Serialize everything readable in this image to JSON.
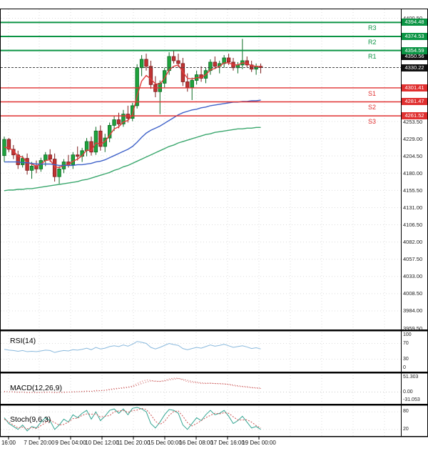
{
  "colors": {
    "up": "#1fa33c",
    "up_border": "#0c6b24",
    "down": "#c03333",
    "down_border": "#7c1d1d",
    "resistance": "#0b9444",
    "support": "#e03030",
    "current_badge": "#111111",
    "ma_fast": "#e23b3b",
    "ma_mid": "#3f62c9",
    "ma_slow": "#3aa76d",
    "rsi": "#8ab9dd",
    "macd": "#d65555",
    "signal": "#b84040",
    "stoch_k": "#35a693",
    "stoch_d": "#cc5555",
    "grid": "#dcdcdc"
  },
  "chart_data": {
    "type": "candlestick",
    "grid": "dotted",
    "time_labels": [
      "16:00",
      "7 Dec 20:00",
      "9 Dec 04:00",
      "10 Dec 12:00",
      "11 Dec 20:00",
      "15 Dec 00:00",
      "16 Dec 08:00",
      "17 Dec 16:00",
      "19 Dec 00:00"
    ],
    "price_axis_ticks": [
      {
        "label": "4400.50",
        "value": 4400.5
      },
      {
        "label": "4253.50",
        "value": 4253.5
      },
      {
        "label": "4229.00",
        "value": 4229.0
      },
      {
        "label": "4204.50",
        "value": 4204.5
      },
      {
        "label": "4180.00",
        "value": 4180.0
      },
      {
        "label": "4155.50",
        "value": 4155.5
      },
      {
        "label": "4131.00",
        "value": 4131.0
      },
      {
        "label": "4106.50",
        "value": 4106.5
      },
      {
        "label": "4082.00",
        "value": 4082.0
      },
      {
        "label": "4057.50",
        "value": 4057.5
      },
      {
        "label": "4033.00",
        "value": 4033.0
      },
      {
        "label": "4008.50",
        "value": 4008.5
      },
      {
        "label": "3984.00",
        "value": 3984.0
      },
      {
        "label": "3959.50",
        "value": 3959.5
      }
    ],
    "levels": {
      "resistance": [
        {
          "name": "R3",
          "label": "4394.48",
          "price": 4394.48
        },
        {
          "name": "R2",
          "label": "4374.53",
          "price": 4374.53
        },
        {
          "name": "R1",
          "label": "4354.59",
          "price": 4354.59
        }
      ],
      "support": [
        {
          "name": "S1",
          "label": "4301.41",
          "price": 4301.41
        },
        {
          "name": "S2",
          "label": "4281.47",
          "price": 4281.47
        },
        {
          "name": "S3",
          "label": "4261.52",
          "price": 4261.52
        }
      ]
    },
    "current_price": {
      "label": "4330.22",
      "value": 4330.22
    },
    "secondary_price": {
      "label": "4350.56",
      "value": 4350.56
    },
    "candles": [
      [
        4205,
        4232,
        4196,
        4228
      ],
      [
        4228,
        4230,
        4210,
        4214
      ],
      [
        4214,
        4220,
        4200,
        4206
      ],
      [
        4206,
        4212,
        4186,
        4192
      ],
      [
        4192,
        4205,
        4188,
        4201
      ],
      [
        4201,
        4208,
        4178,
        4184
      ],
      [
        4184,
        4196,
        4172,
        4190
      ],
      [
        4190,
        4198,
        4180,
        4186
      ],
      [
        4186,
        4202,
        4182,
        4198
      ],
      [
        4198,
        4210,
        4190,
        4206
      ],
      [
        4206,
        4214,
        4196,
        4200
      ],
      [
        4200,
        4208,
        4168,
        4175
      ],
      [
        4175,
        4190,
        4165,
        4186
      ],
      [
        4186,
        4200,
        4180,
        4196
      ],
      [
        4196,
        4206,
        4188,
        4192
      ],
      [
        4192,
        4210,
        4186,
        4206
      ],
      [
        4206,
        4218,
        4198,
        4204
      ],
      [
        4204,
        4216,
        4196,
        4212
      ],
      [
        4212,
        4230,
        4204,
        4225
      ],
      [
        4225,
        4232,
        4205,
        4210
      ],
      [
        4210,
        4246,
        4206,
        4240
      ],
      [
        4240,
        4248,
        4212,
        4218
      ],
      [
        4218,
        4236,
        4210,
        4230
      ],
      [
        4230,
        4252,
        4224,
        4248
      ],
      [
        4248,
        4262,
        4240,
        4256
      ],
      [
        4256,
        4266,
        4244,
        4250
      ],
      [
        4250,
        4270,
        4246,
        4264
      ],
      [
        4264,
        4276,
        4252,
        4258
      ],
      [
        4258,
        4280,
        4254,
        4276
      ],
      [
        4276,
        4335,
        4272,
        4330
      ],
      [
        4330,
        4348,
        4318,
        4342
      ],
      [
        4342,
        4350,
        4326,
        4332
      ],
      [
        4332,
        4340,
        4300,
        4306
      ],
      [
        4306,
        4318,
        4288,
        4296
      ],
      [
        4296,
        4312,
        4264,
        4308
      ],
      [
        4308,
        4330,
        4302,
        4326
      ],
      [
        4326,
        4352,
        4320,
        4346
      ],
      [
        4346,
        4354,
        4336,
        4340
      ],
      [
        4340,
        4350,
        4330,
        4336
      ],
      [
        4336,
        4344,
        4304,
        4310
      ],
      [
        4310,
        4322,
        4296,
        4302
      ],
      [
        4302,
        4316,
        4284,
        4312
      ],
      [
        4312,
        4326,
        4306,
        4320
      ],
      [
        4320,
        4332,
        4310,
        4315
      ],
      [
        4315,
        4330,
        4308,
        4326
      ],
      [
        4326,
        4342,
        4320,
        4338
      ],
      [
        4338,
        4346,
        4328,
        4332
      ],
      [
        4332,
        4340,
        4322,
        4336
      ],
      [
        4336,
        4348,
        4330,
        4344
      ],
      [
        4344,
        4350,
        4334,
        4338
      ],
      [
        4338,
        4344,
        4326,
        4330
      ],
      [
        4330,
        4338,
        4322,
        4334
      ],
      [
        4334,
        4371,
        4328,
        4340
      ],
      [
        4340,
        4346,
        4330,
        4334
      ],
      [
        4334,
        4340,
        4324,
        4328
      ],
      [
        4328,
        4336,
        4320,
        4332
      ],
      [
        4332,
        4336,
        4322,
        4330.22
      ]
    ],
    "moving_averages": [
      {
        "name": "ma-fast-red",
        "color": "#e23b3b",
        "values": [
          4217,
          4216,
          4212,
          4204,
          4203,
          4195,
          4193,
          4190,
          4193,
          4198,
          4199,
          4189,
          4188,
          4191,
          4192,
          4197,
          4200,
          4205,
          4213,
          4212,
          4223,
          4221,
          4225,
          4234,
          4243,
          4246,
          4253,
          4255,
          4263,
          4290,
          4311,
          4319,
          4314,
          4307,
          4307,
          4315,
          4327,
          4332,
          4334,
          4324,
          4315,
          4314,
          4316,
          4316,
          4320,
          4327,
          4329,
          4332,
          4337,
          4337,
          4334,
          4334,
          4337,
          4336,
          4333,
          4332,
          4332
        ]
      },
      {
        "name": "ma-mid-blue",
        "color": "#3f62c9",
        "values": [
          4196,
          4196,
          4196,
          4196,
          4195,
          4195,
          4194,
          4193,
          4193,
          4193,
          4193,
          4192,
          4191,
          4191,
          4191,
          4191,
          4192,
          4192,
          4193,
          4194,
          4196,
          4197,
          4199,
          4202,
          4205,
          4208,
          4211,
          4214,
          4218,
          4224,
          4231,
          4237,
          4241,
          4244,
          4247,
          4251,
          4255,
          4259,
          4263,
          4266,
          4268,
          4270,
          4271,
          4273,
          4274,
          4276,
          4277,
          4278,
          4279,
          4280,
          4281,
          4281,
          4282,
          4282,
          4283,
          4283,
          4284
        ]
      },
      {
        "name": "ma-slow-green",
        "color": "#3aa76d",
        "values": [
          4155,
          4156,
          4156,
          4157,
          4157,
          4158,
          4158,
          4159,
          4160,
          4161,
          4162,
          4163,
          4164,
          4165,
          4166,
          4167,
          4168,
          4170,
          4171,
          4173,
          4175,
          4177,
          4179,
          4181,
          4184,
          4186,
          4189,
          4191,
          4194,
          4197,
          4200,
          4203,
          4206,
          4209,
          4212,
          4215,
          4218,
          4220,
          4223,
          4225,
          4227,
          4229,
          4231,
          4233,
          4235,
          4236,
          4238,
          4239,
          4240,
          4241,
          4242,
          4243,
          4243,
          4244,
          4244,
          4245,
          4245
        ]
      }
    ],
    "indicators": {
      "rsi": {
        "label": "RSI(14)",
        "range": [
          0,
          100
        ],
        "guides": [
          70,
          30
        ],
        "axis": [
          {
            "label": "100",
            "value": 100
          },
          {
            "label": "70",
            "value": 70
          },
          {
            "label": "30",
            "value": 30
          },
          {
            "label": "0",
            "value": 0
          }
        ],
        "values": [
          55,
          53,
          52,
          50,
          52,
          49,
          50,
          49,
          51,
          53,
          52,
          47,
          50,
          52,
          51,
          54,
          53,
          55,
          58,
          54,
          60,
          56,
          58,
          62,
          64,
          62,
          66,
          63,
          68,
          75,
          73,
          70,
          60,
          56,
          60,
          65,
          70,
          67,
          65,
          57,
          54,
          57,
          60,
          58,
          62,
          66,
          63,
          65,
          68,
          64,
          60,
          62,
          64,
          61,
          57,
          59,
          56
        ]
      },
      "macd": {
        "label": "MACD(12,26,9)",
        "range": [
          -31.053,
          51.303
        ],
        "axis": [
          {
            "label": "51.303",
            "value": 51.303
          },
          {
            "label": "0.00",
            "value": 0
          },
          {
            "label": "-31.053",
            "value": -31.053
          }
        ],
        "macd": [
          2,
          1,
          0,
          -1,
          0,
          -2,
          -1,
          -2,
          -1,
          0,
          0,
          -2,
          -1,
          0,
          0,
          1,
          1,
          2,
          3,
          2,
          5,
          4,
          5,
          8,
          10,
          11,
          13,
          14,
          17,
          24,
          30,
          34,
          33,
          30,
          30,
          33,
          37,
          39,
          39,
          34,
          29,
          27,
          26,
          24,
          24,
          25,
          24,
          23,
          23,
          21,
          18,
          16,
          15,
          14,
          12,
          11,
          10
        ],
        "signal": [
          1,
          1,
          1,
          0,
          0,
          -1,
          -1,
          -1,
          -1,
          -1,
          0,
          -1,
          -1,
          -1,
          0,
          0,
          1,
          1,
          2,
          2,
          3,
          4,
          5,
          6,
          8,
          10,
          11,
          13,
          15,
          19,
          24,
          28,
          31,
          31,
          30,
          31,
          34,
          36,
          38,
          36,
          33,
          30,
          28,
          26,
          25,
          25,
          24,
          24,
          23,
          22,
          20,
          18,
          16,
          15,
          13,
          12,
          11
        ]
      },
      "stoch": {
        "label": "Stoch(9,6,3)",
        "range": [
          0,
          100
        ],
        "guides": [
          80,
          20
        ],
        "axis": [
          {
            "label": "80",
            "value": 80
          },
          {
            "label": "20",
            "value": 20
          }
        ],
        "k": [
          60,
          40,
          30,
          20,
          35,
          15,
          30,
          25,
          45,
          60,
          50,
          20,
          35,
          55,
          45,
          70,
          60,
          75,
          85,
          55,
          80,
          50,
          65,
          85,
          90,
          75,
          90,
          70,
          92,
          95,
          90,
          80,
          40,
          25,
          45,
          70,
          88,
          85,
          75,
          35,
          20,
          40,
          60,
          50,
          70,
          85,
          70,
          75,
          85,
          65,
          40,
          50,
          65,
          45,
          25,
          30,
          20
        ],
        "d": [
          55,
          45,
          35,
          25,
          28,
          22,
          27,
          23,
          33,
          43,
          52,
          43,
          35,
          37,
          45,
          57,
          58,
          68,
          73,
          72,
          73,
          62,
          65,
          67,
          80,
          83,
          85,
          78,
          84,
          86,
          92,
          88,
          70,
          48,
          37,
          47,
          68,
          81,
          83,
          65,
          43,
          32,
          40,
          50,
          60,
          68,
          75,
          73,
          77,
          75,
          63,
          52,
          52,
          53,
          45,
          33,
          25
        ]
      }
    }
  }
}
